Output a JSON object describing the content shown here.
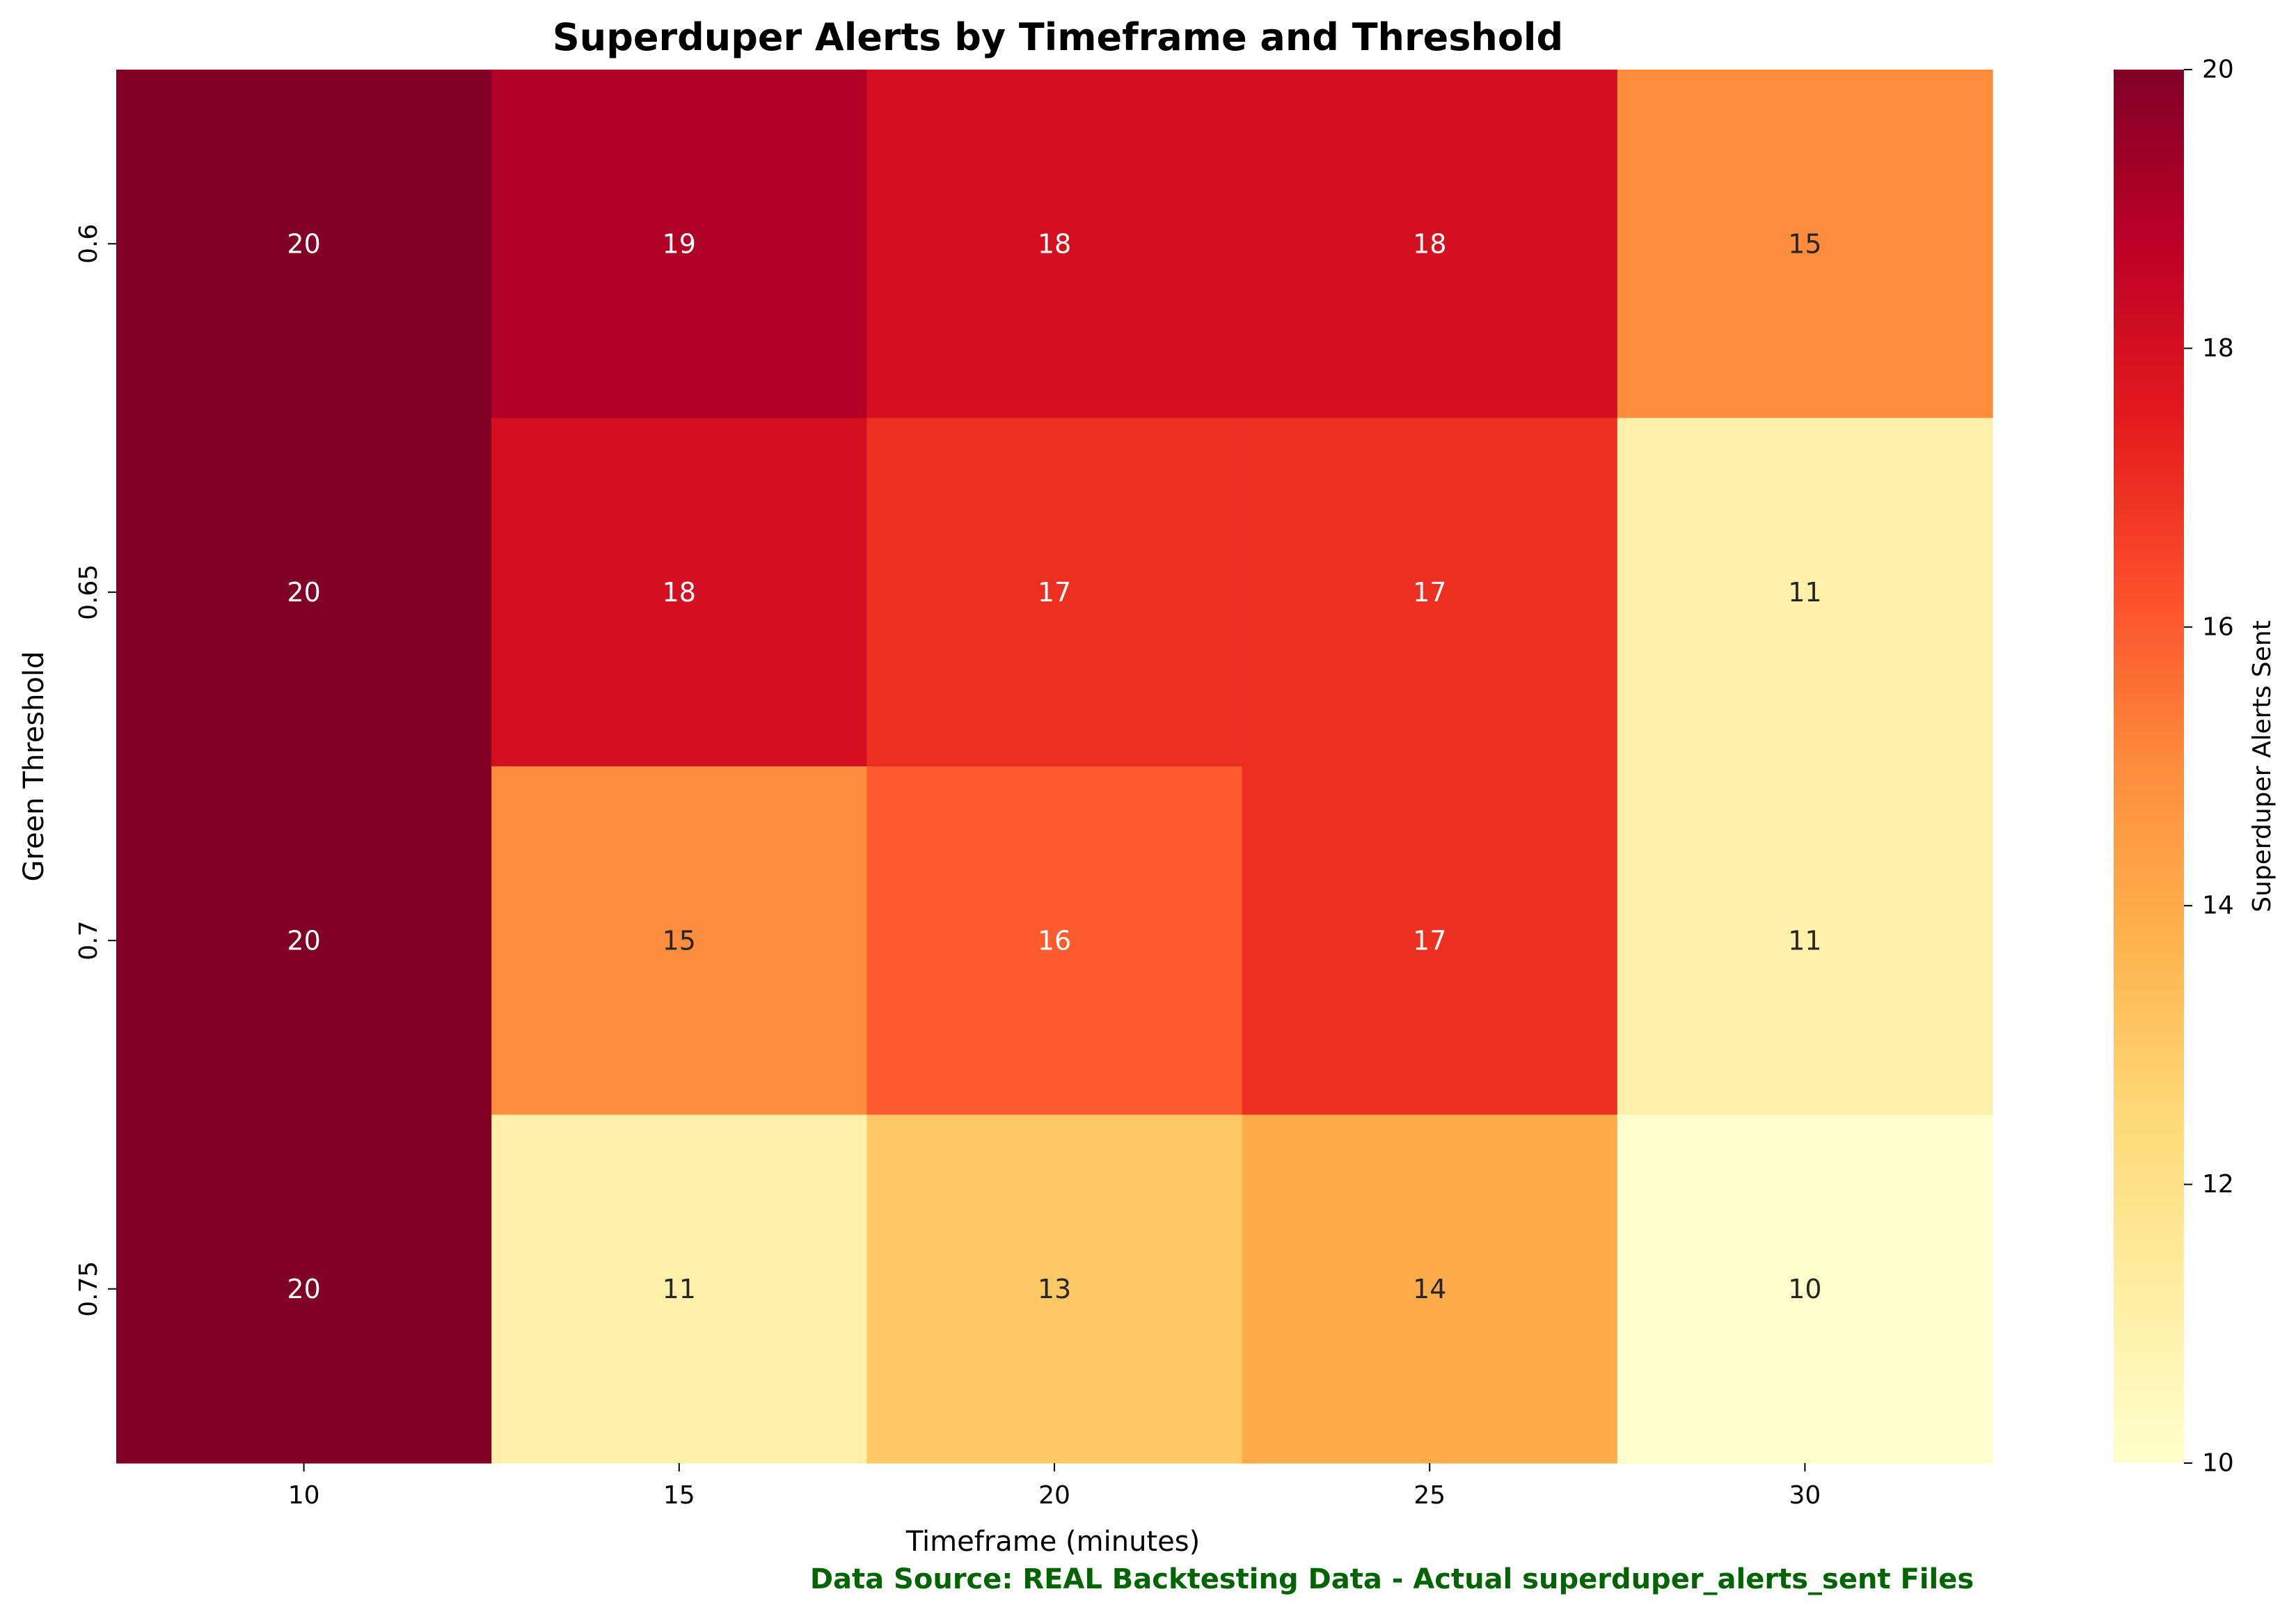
{
  "chart_data": {
    "type": "heatmap",
    "title": "Superduper Alerts by Timeframe and Threshold",
    "xlabel": "Timeframe (minutes)",
    "ylabel": "Green Threshold",
    "x_categories": [
      "10",
      "15",
      "20",
      "25",
      "30"
    ],
    "y_categories": [
      "0.6",
      "0.65",
      "0.7",
      "0.75"
    ],
    "values": [
      [
        20,
        19,
        18,
        18,
        15
      ],
      [
        20,
        18,
        17,
        17,
        11
      ],
      [
        20,
        15,
        16,
        17,
        11
      ],
      [
        20,
        11,
        13,
        14,
        10
      ]
    ],
    "colorbar": {
      "label": "Superduper Alerts Sent",
      "range": [
        10,
        20
      ],
      "ticks": [
        "10",
        "12",
        "14",
        "16",
        "18",
        "20"
      ],
      "colormap": "YlOrRd",
      "colors": [
        "#ffffcc",
        "#ffeda0",
        "#fed976",
        "#feb24c",
        "#fd8d3c",
        "#fc4e2a",
        "#e31a1c",
        "#bd0026",
        "#800026"
      ]
    },
    "footnote": "Data Source: REAL Backtesting Data - Actual superduper_alerts_sent Files",
    "footnote_color": "#006400",
    "grid": false,
    "annotated": true
  }
}
